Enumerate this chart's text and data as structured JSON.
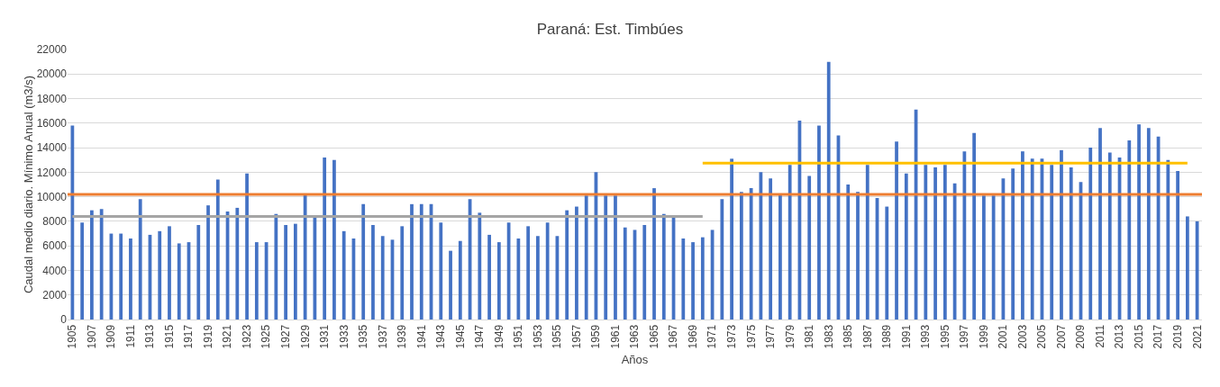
{
  "chart_data": {
    "type": "bar",
    "title": "Paraná: Est. Timbúes",
    "xlabel": "Años",
    "ylabel": "Caudal medio diario. Mínimo Anual (m3/s)",
    "categories": [
      "1905",
      null,
      "1907",
      null,
      "1909",
      null,
      "1911",
      null,
      "1913",
      null,
      "1915",
      null,
      "1917",
      null,
      "1919",
      null,
      "1921",
      null,
      "1923",
      null,
      "1925",
      null,
      "1927",
      null,
      "1929",
      null,
      "1931",
      null,
      "1933",
      null,
      "1935",
      null,
      "1937",
      null,
      "1939",
      null,
      "1941",
      null,
      "1943",
      null,
      "1945",
      null,
      "1947",
      null,
      "1949",
      null,
      "1951",
      null,
      "1953",
      null,
      "1955",
      null,
      "1957",
      null,
      "1959",
      null,
      "1961",
      null,
      "1963",
      null,
      "1965",
      null,
      "1967",
      null,
      "1969",
      null,
      "1971",
      null,
      "1973",
      null,
      "1975",
      null,
      "1977",
      null,
      "1979",
      null,
      "1981",
      null,
      "1983",
      null,
      "1985",
      null,
      "1987",
      null,
      "1989",
      null,
      "1991",
      null,
      "1993",
      null,
      "1995",
      null,
      "1997",
      null,
      "1999",
      null,
      "2001",
      null,
      "2003",
      null,
      "2005",
      null,
      "2007",
      null,
      "2009",
      null,
      "2011",
      null,
      "2013",
      null,
      "2015",
      null,
      "2017",
      null,
      "2019",
      null,
      "2021"
    ],
    "series": [
      {
        "color": "#4472c4",
        "values": [
          15800,
          7900,
          8900,
          9000,
          7000,
          7000,
          6600,
          9800,
          6900,
          7200,
          7600,
          6200,
          6300,
          7700,
          9300,
          11400,
          8800,
          9100,
          11900,
          6300,
          6300,
          8600,
          7700,
          7800,
          10200,
          8300,
          13200,
          13000,
          7200,
          6600,
          9400,
          7700,
          6800,
          6500,
          7600,
          9400,
          9400,
          9400,
          7900,
          5600,
          6400,
          9800,
          8700,
          6900,
          6300,
          7900,
          6600,
          7600,
          6800,
          7900,
          6800,
          8900,
          9200,
          10100,
          12000,
          10100,
          10100,
          7500,
          7300,
          7700,
          10700,
          8600,
          8400,
          6600,
          6300,
          6700,
          7300,
          9800,
          13100,
          10400,
          10700,
          12000,
          11500,
          10200,
          12600,
          16200,
          11700,
          15800,
          21000,
          15000,
          11000,
          10400,
          12600,
          9900,
          9200,
          14500,
          11900,
          17100,
          12600,
          12400,
          12600,
          11100,
          13700,
          15200,
          10100,
          10100,
          11500,
          12300,
          13700,
          13100,
          13100,
          12600,
          13800,
          12400,
          11200,
          14000,
          15600,
          13600,
          13200,
          14600,
          15900,
          15600,
          14900,
          13000,
          12100,
          8400,
          8000
        ]
      },
      {
        "type": "line",
        "color": "#a5a5a5",
        "values": [
          8400,
          8400,
          8400,
          8400,
          8400,
          8400,
          8400,
          8400,
          8400,
          8400,
          8400,
          8400,
          8400,
          8400,
          8400,
          8400,
          8400,
          8400,
          8400,
          8400,
          8400,
          8400,
          8400,
          8400,
          8400,
          8400,
          8400,
          8400,
          8400,
          8400,
          8400,
          8400,
          8400,
          8400,
          8400,
          8400,
          8400,
          8400,
          8400,
          8400,
          8400,
          8400,
          8400,
          8400,
          8400,
          8400,
          8400,
          8400,
          8400,
          8400,
          8400,
          8400,
          8400,
          8400,
          8400,
          8400,
          8400,
          8400,
          8400,
          8400,
          8400,
          8400,
          8400,
          8400,
          8400,
          8400,
          null,
          null,
          null,
          null,
          null,
          null,
          null,
          null,
          null,
          null,
          null,
          null,
          null,
          null,
          null,
          null,
          null,
          null,
          null,
          null,
          null,
          null,
          null,
          null,
          null,
          null,
          null,
          null,
          null,
          null,
          null,
          null,
          null,
          null,
          null,
          null,
          null,
          null,
          null,
          null,
          null,
          null,
          null,
          null,
          null,
          null,
          null,
          null,
          null,
          null,
          null
        ]
      },
      {
        "type": "line",
        "color": "#ffc000",
        "values": [
          null,
          null,
          null,
          null,
          null,
          null,
          null,
          null,
          null,
          null,
          null,
          null,
          null,
          null,
          null,
          null,
          null,
          null,
          null,
          null,
          null,
          null,
          null,
          null,
          null,
          null,
          null,
          null,
          null,
          null,
          null,
          null,
          null,
          null,
          null,
          null,
          null,
          null,
          null,
          null,
          null,
          null,
          null,
          null,
          null,
          null,
          null,
          null,
          null,
          null,
          null,
          null,
          null,
          null,
          null,
          null,
          null,
          null,
          null,
          null,
          null,
          null,
          null,
          null,
          null,
          12750,
          12750,
          12750,
          12750,
          12750,
          12750,
          12750,
          12750,
          12750,
          12750,
          12750,
          12750,
          12750,
          12750,
          12750,
          12750,
          12750,
          12750,
          12750,
          12750,
          12750,
          12750,
          12750,
          12750,
          12750,
          12750,
          12750,
          12750,
          12750,
          12750,
          12750,
          12750,
          12750,
          12750,
          12750,
          12750,
          12750,
          12750,
          12750,
          12750,
          12750,
          12750,
          12750,
          12750,
          12750,
          12750,
          12750,
          12750,
          12750,
          12750,
          12750,
          null
        ]
      }
    ],
    "ref_lines": [
      {
        "axis": "y",
        "value": 10200,
        "color": "#ed7d31"
      }
    ],
    "ylim": [
      0,
      22000
    ],
    "yticks": [
      0,
      2000,
      4000,
      6000,
      8000,
      10000,
      12000,
      14000,
      16000,
      18000,
      20000,
      22000
    ],
    "grid": "y",
    "legend": false
  }
}
